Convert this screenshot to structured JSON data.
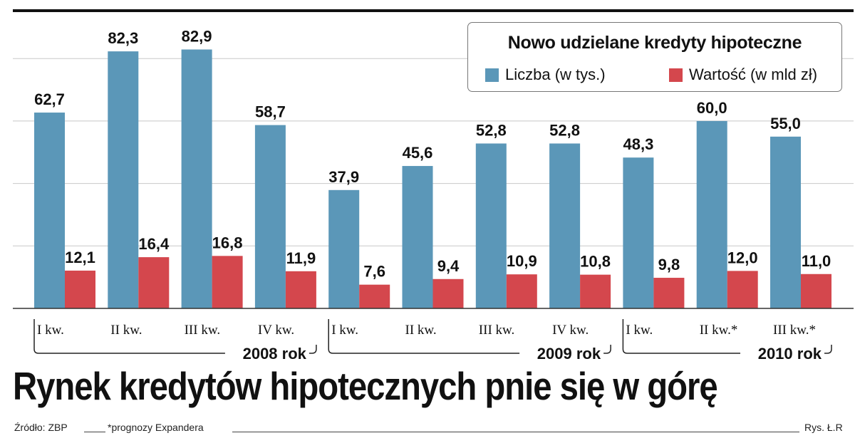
{
  "chart_data": {
    "type": "bar",
    "title": "Nowo udzielane kredyty hipoteczne",
    "categories": [
      "I kw.",
      "II kw.",
      "III kw.",
      "IV kw.",
      "I kw.",
      "II kw.",
      "III kw.",
      "IV kw.",
      "I kw.",
      "II kw.*",
      "III kw.*"
    ],
    "series": [
      {
        "name": "Liczba (w tys.)",
        "color": "#5b97b8",
        "values": [
          62.7,
          82.3,
          82.9,
          58.7,
          37.9,
          45.6,
          52.8,
          52.8,
          48.3,
          60.0,
          55.0
        ]
      },
      {
        "name": "Wartość (w mld zł)",
        "color": "#d4474d",
        "values": [
          12.1,
          16.4,
          16.8,
          11.9,
          7.6,
          9.4,
          10.9,
          10.8,
          9.8,
          12.0,
          11.0
        ]
      }
    ],
    "value_labels": {
      "Liczba (w tys.)": [
        "62,7",
        "82,3",
        "82,9",
        "58,7",
        "37,9",
        "45,6",
        "52,8",
        "52,8",
        "48,3",
        "60,0",
        "55,0"
      ],
      "Wartość (w mld zł)": [
        "12,1",
        "16,4",
        "16,8",
        "11,9",
        "7,6",
        "9,4",
        "10,9",
        "10,8",
        "9,8",
        "12,0",
        "11,0"
      ]
    },
    "groups": [
      {
        "label": "2008 rok",
        "categories": 4
      },
      {
        "label": "2009 rok",
        "categories": 4
      },
      {
        "label": "2010 rok",
        "categories": 3
      }
    ],
    "ylim": [
      0,
      100
    ],
    "grid": true,
    "legend_position": "top-right"
  },
  "headline": "Rynek kredytów hipotecznych pnie się w górę",
  "footer": {
    "source": "Źródło: ZBP",
    "note": "*prognozy Expandera",
    "credit": "Rys. Ł.R"
  }
}
